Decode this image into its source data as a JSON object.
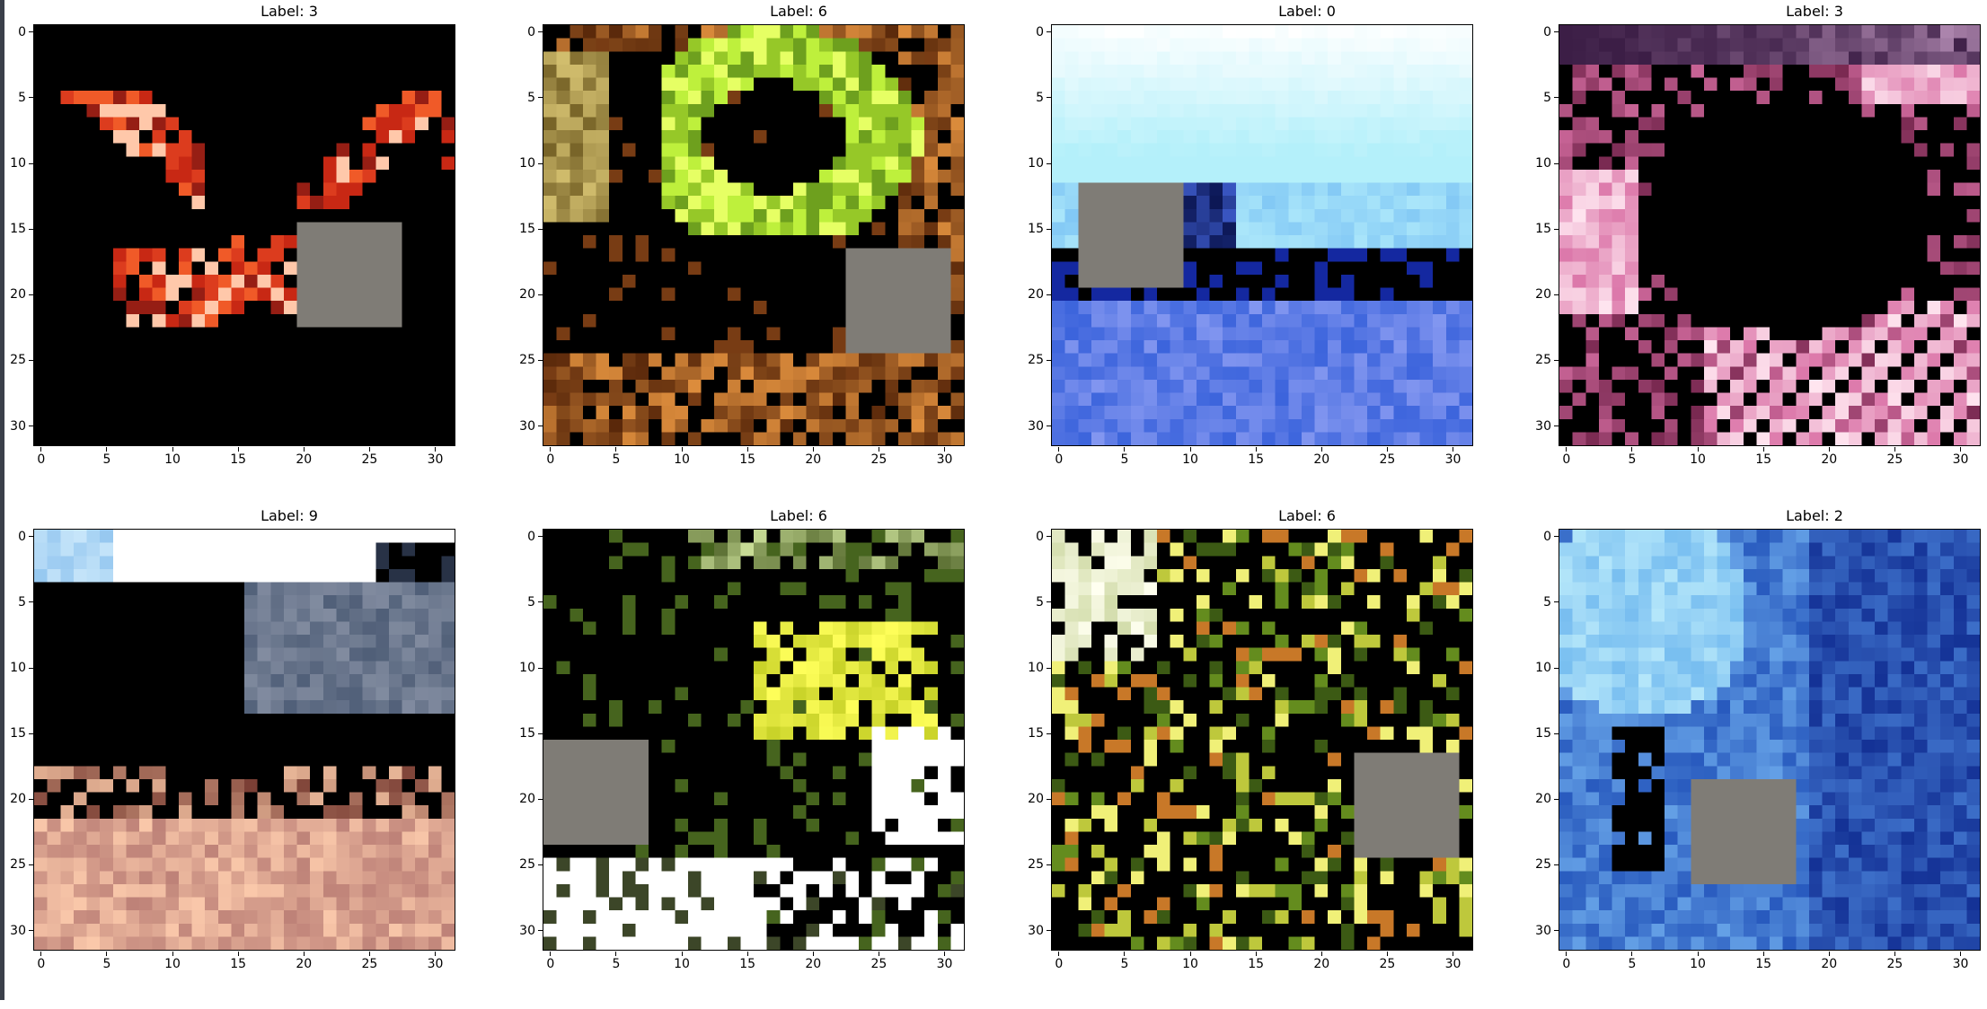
{
  "panels": [
    {
      "title": "Label: 3",
      "scene": "red-leaves",
      "patch": [
        20,
        15
      ]
    },
    {
      "title": "Label: 6",
      "scene": "green-frog",
      "patch": [
        23,
        17
      ]
    },
    {
      "title": "Label: 0",
      "scene": "sky-sea",
      "patch": [
        2,
        12
      ]
    },
    {
      "title": "Label: 3",
      "scene": "pink-curl",
      "patch": null
    },
    {
      "title": "Label: 9",
      "scene": "truck-bed",
      "patch": null
    },
    {
      "title": "Label: 6",
      "scene": "yellow-foliage",
      "patch": [
        0,
        16
      ]
    },
    {
      "title": "Label: 6",
      "scene": "speckled-green",
      "patch": [
        23,
        17
      ]
    },
    {
      "title": "Label: 2",
      "scene": "blue-bird",
      "patch": [
        10,
        19
      ]
    }
  ],
  "axis": {
    "y_ticks": [
      "0",
      "5",
      "10",
      "15",
      "20",
      "25",
      "30"
    ],
    "x_ticks": [
      "0",
      "5",
      "10",
      "15",
      "20",
      "25",
      "30"
    ]
  },
  "colors": {
    "patch": "#7f7c76",
    "frame": "#000000"
  }
}
